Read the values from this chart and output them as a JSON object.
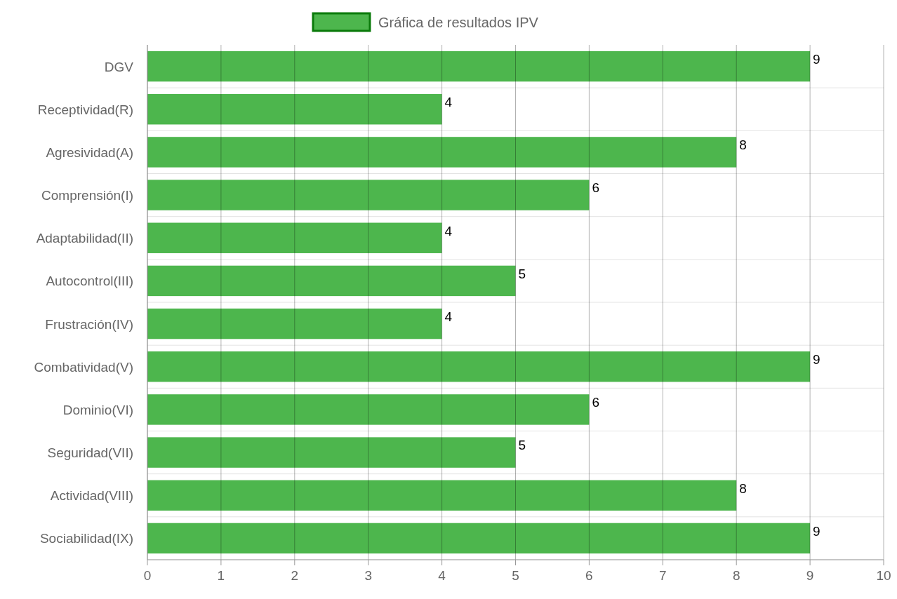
{
  "chart_data": {
    "type": "bar",
    "orientation": "horizontal",
    "categories": [
      "DGV",
      "Receptividad(R)",
      "Agresividad(A)",
      "Comprensión(I)",
      "Adaptabilidad(II)",
      "Autocontrol(III)",
      "Frustración(IV)",
      "Combatividad(V)",
      "Dominio(VI)",
      "Seguridad(VII)",
      "Actividad(VIII)",
      "Sociabilidad(IX)"
    ],
    "series": [
      {
        "name": "Gráfica de resultados IPV",
        "color": "#4db64d",
        "values": [
          9,
          4,
          8,
          6,
          4,
          5,
          4,
          9,
          6,
          5,
          8,
          9
        ]
      }
    ],
    "xlim": [
      0,
      10
    ],
    "xticks": [
      0,
      1,
      2,
      3,
      4,
      5,
      6,
      7,
      8,
      9,
      10
    ],
    "grid": true,
    "legend": "top",
    "data_labels": true
  }
}
